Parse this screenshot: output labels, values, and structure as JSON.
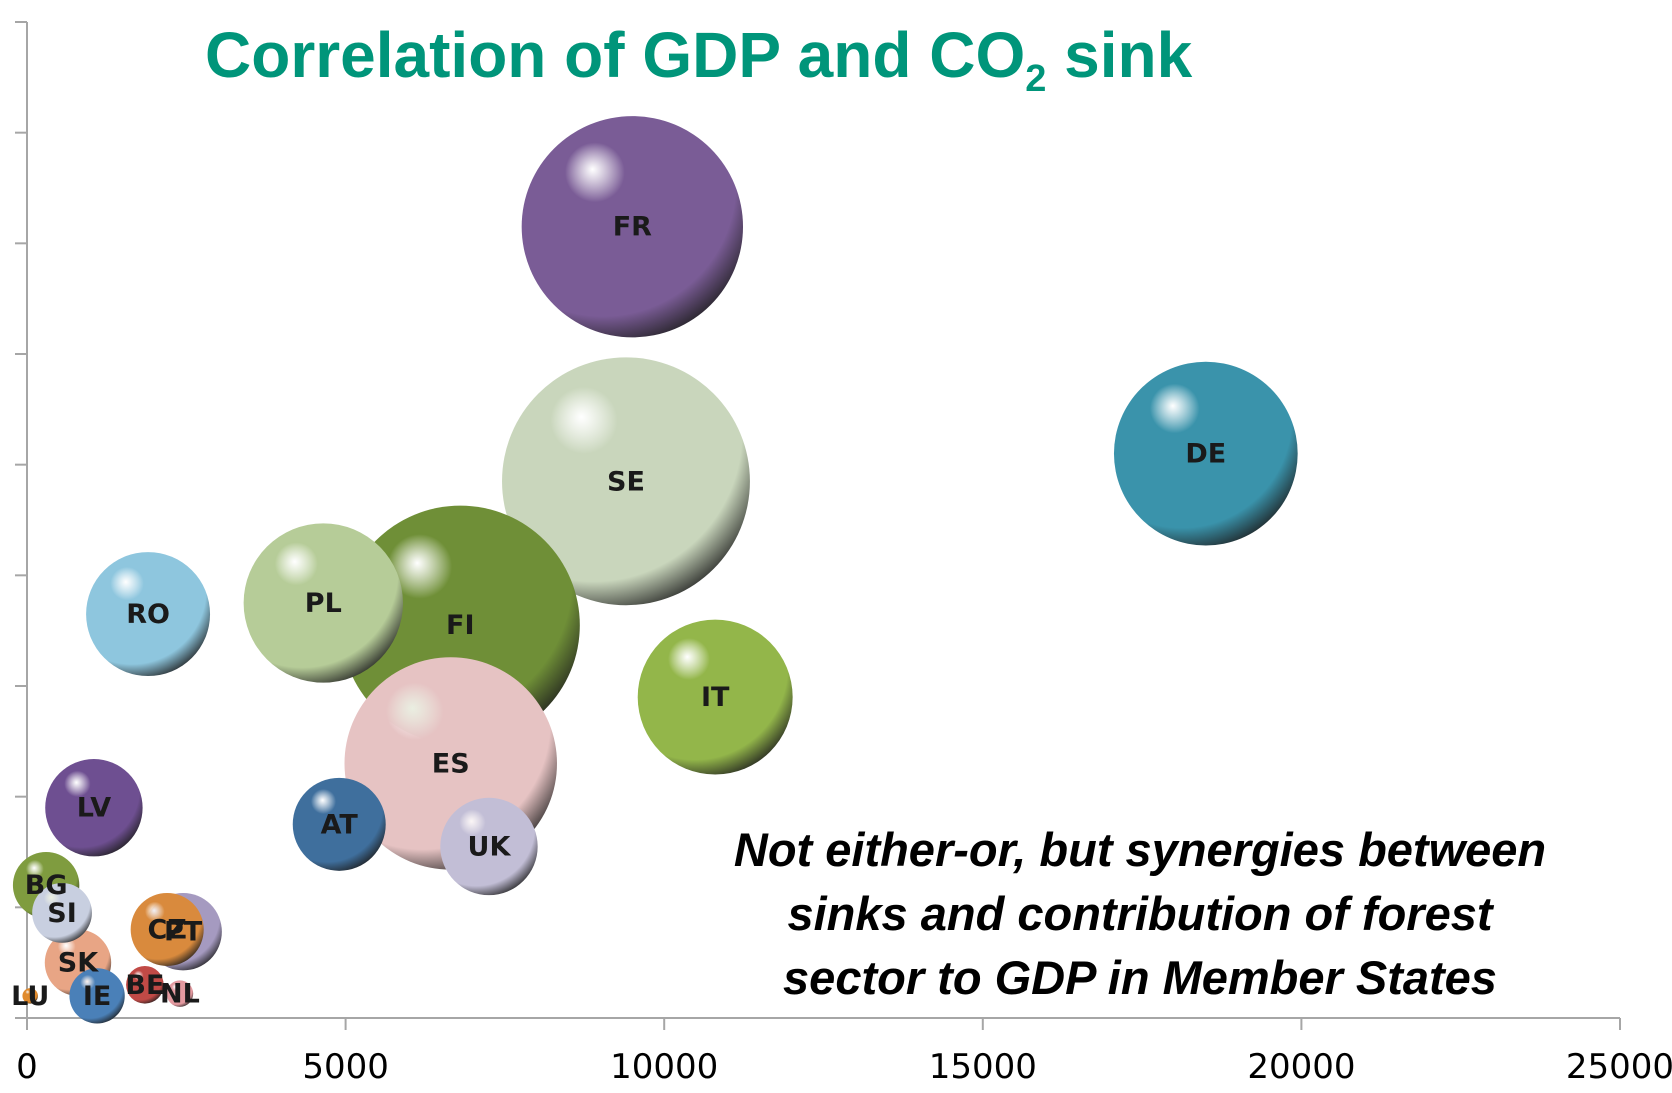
{
  "title": {
    "main": "Correlation of GDP and CO",
    "subscript": "2",
    "suffix": " sink"
  },
  "note": {
    "line1": "Not either-or, but synergies between",
    "line2": "sinks and contribution of forest",
    "line3": "sector to GDP in Member States"
  },
  "chart_data": {
    "type": "bubble",
    "title": "Correlation of GDP and CO2 sink",
    "xlabel": "",
    "ylabel": "",
    "xlim": [
      0,
      25000
    ],
    "ylim": [
      0,
      9
    ],
    "x_ticks": [
      "0",
      "5000",
      "10000",
      "15000",
      "20000",
      "25000"
    ],
    "grid": false,
    "legend": "none",
    "points": [
      {
        "label": "FR",
        "x": 9500,
        "y": 7.15,
        "r": 1.0,
        "color": "#7a5c96"
      },
      {
        "label": "DE",
        "x": 18500,
        "y": 5.1,
        "r": 0.83,
        "color": "#3a93ab"
      },
      {
        "label": "FI",
        "x": 6800,
        "y": 3.55,
        "r": 1.08,
        "color": "#6f8f37"
      },
      {
        "label": "SE",
        "x": 9400,
        "y": 4.85,
        "r": 1.12,
        "color": "#c9d6bc"
      },
      {
        "label": "RO",
        "x": 1900,
        "y": 3.65,
        "r": 0.56,
        "color": "#8ec6de"
      },
      {
        "label": "PL",
        "x": 4650,
        "y": 3.75,
        "r": 0.72,
        "color": "#b6cc98"
      },
      {
        "label": "IT",
        "x": 10800,
        "y": 2.9,
        "r": 0.7,
        "color": "#93b64a"
      },
      {
        "label": "ES",
        "x": 6650,
        "y": 2.3,
        "r": 0.96,
        "color": "#e6c3c3"
      },
      {
        "label": "AT",
        "x": 4900,
        "y": 1.75,
        "r": 0.42,
        "color": "#3f6f9d"
      },
      {
        "label": "UK",
        "x": 7250,
        "y": 1.55,
        "r": 0.44,
        "color": "#c2bed6"
      },
      {
        "label": "LV",
        "x": 1050,
        "y": 1.9,
        "r": 0.44,
        "color": "#6e4f91"
      },
      {
        "label": "BG",
        "x": 300,
        "y": 1.2,
        "r": 0.3,
        "color": "#7f9c3f"
      },
      {
        "label": "CZ",
        "x": 2200,
        "y": 0.8,
        "r": 0.33,
        "color": "#d98a3d"
      },
      {
        "label": "SI",
        "x": 550,
        "y": 0.95,
        "r": 0.27,
        "color": "#c8cfe0"
      },
      {
        "label": "PT",
        "x": 2450,
        "y": 0.78,
        "r": 0.35,
        "color": "#a59ac0"
      },
      {
        "label": "SK",
        "x": 800,
        "y": 0.5,
        "r": 0.3,
        "color": "#e8a585"
      },
      {
        "label": "BE",
        "x": 1850,
        "y": 0.3,
        "r": 0.17,
        "color": "#c14a46"
      },
      {
        "label": "NL",
        "x": 2400,
        "y": 0.22,
        "r": 0.12,
        "color": "#e49aa0"
      },
      {
        "label": "IE",
        "x": 1100,
        "y": 0.2,
        "r": 0.25,
        "color": "#4a80b8"
      },
      {
        "label": "LU",
        "x": 50,
        "y": 0.2,
        "r": 0.07,
        "color": "#e08a2c"
      }
    ]
  }
}
